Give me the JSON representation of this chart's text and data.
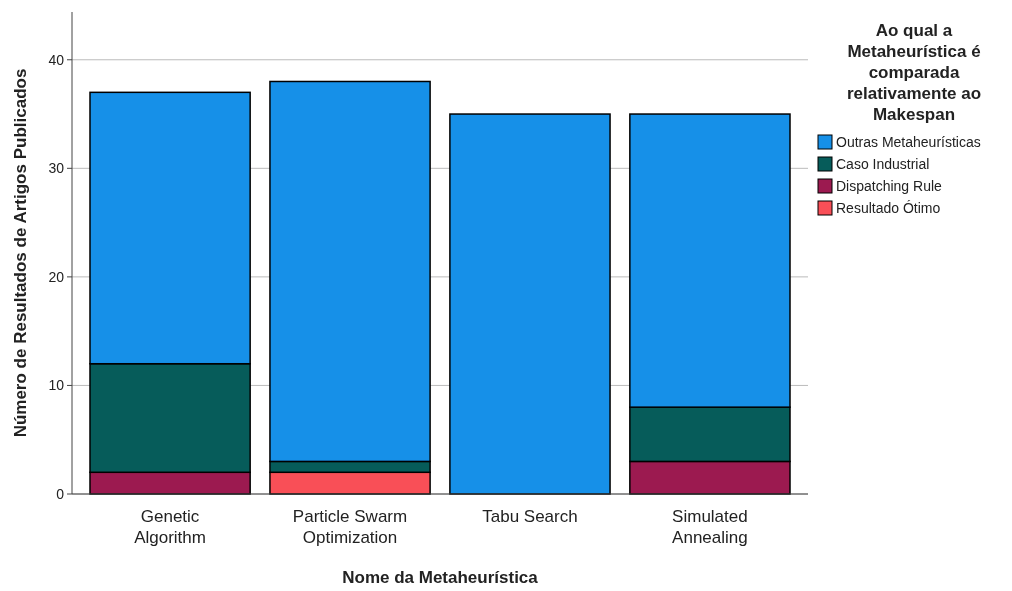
{
  "chart_data": {
    "type": "bar",
    "stacked": true,
    "xlabel": "Nome da Metaheurística",
    "ylabel": "Número de Resultados de Artigos Publicados",
    "legend_title": "Ao qual a Metaheurística é comparada relativamente ao Makespan",
    "categories": [
      "Genetic Algorithm",
      "Particle Swarm Optimization",
      "Tabu Search",
      "Simulated Annealing"
    ],
    "series": [
      {
        "name": "Resultado Ótimo",
        "color": "#f94f57",
        "values": [
          0,
          2,
          0,
          0
        ]
      },
      {
        "name": "Dispatching Rule",
        "color": "#9c1a50",
        "values": [
          2,
          0,
          0,
          3
        ]
      },
      {
        "name": "Caso Industrial",
        "color": "#065c5a",
        "values": [
          10,
          1,
          0,
          5
        ]
      },
      {
        "name": "Outras Metaheurísticas",
        "color": "#1690e8",
        "values": [
          25,
          35,
          35,
          27
        ]
      }
    ],
    "ylim": [
      0,
      44.4
    ],
    "yticks": [
      0,
      10,
      20,
      30,
      40
    ],
    "grid": "y",
    "legend": "right"
  }
}
